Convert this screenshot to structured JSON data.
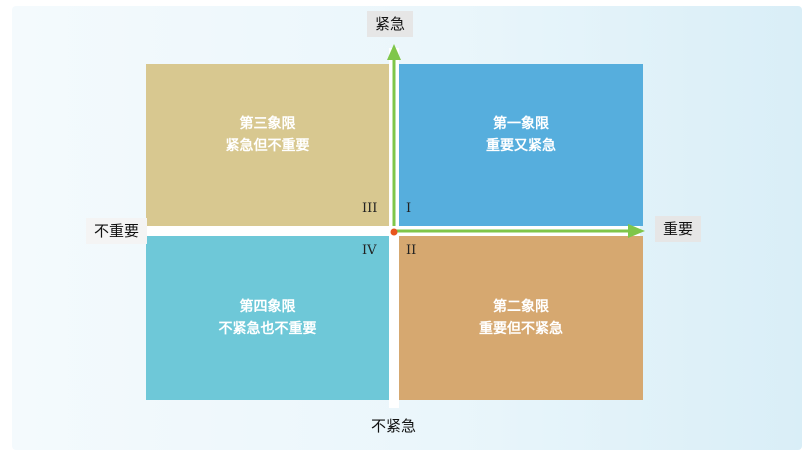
{
  "axes": {
    "top": "紧急",
    "bottom": "不紧急",
    "left": "不重要",
    "right": "重要"
  },
  "quadrants": [
    {
      "roman": "I",
      "title": "第一象限",
      "desc": "重要又紧急",
      "color": "#56aedd"
    },
    {
      "roman": "II",
      "title": "第二象限",
      "desc": "重要但不紧急",
      "color": "#d6a870"
    },
    {
      "roman": "III",
      "title": "第三象限",
      "desc": "紧急但不重要",
      "color": "#d8c890"
    },
    {
      "roman": "IV",
      "title": "第四象限",
      "desc": "不紧急也不重要",
      "color": "#6ec8d8"
    }
  ],
  "arrow_color": "#7fc64a",
  "origin_color": "#e8551c"
}
